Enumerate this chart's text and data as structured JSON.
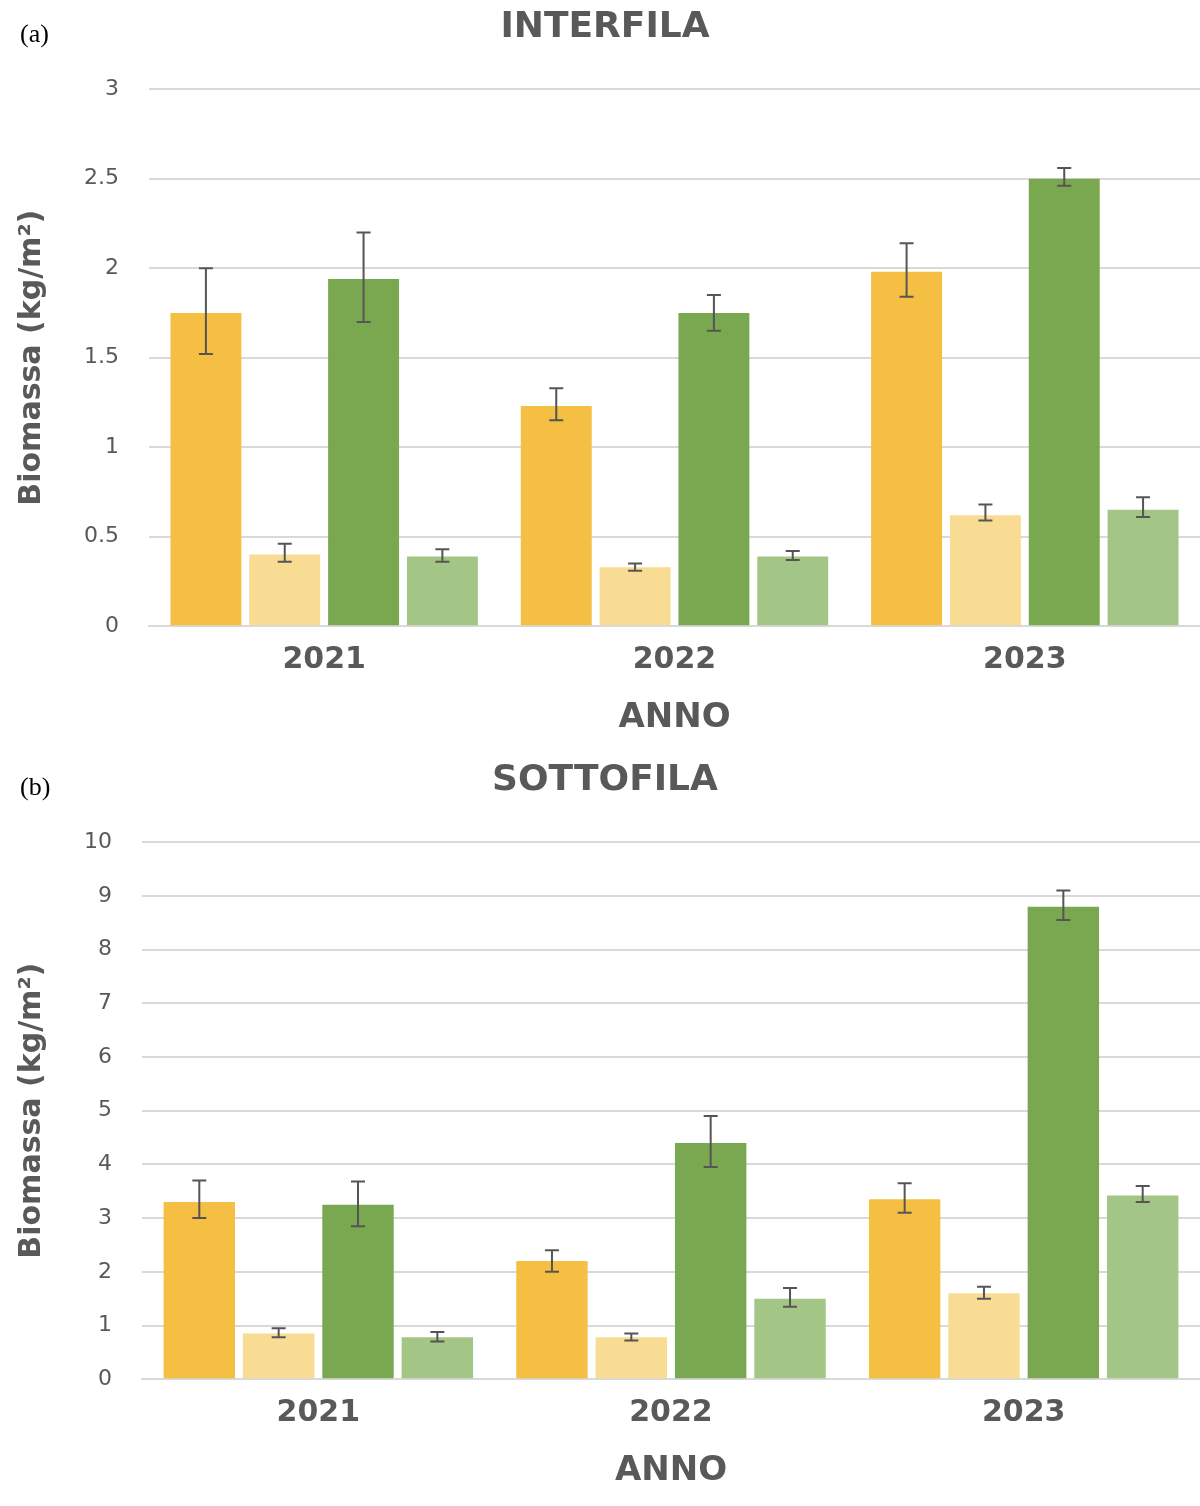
{
  "chart_data": [
    {
      "type": "bar",
      "title": "INTERFILA",
      "xlabel": "ANNO",
      "ylabel": "Biomassa (kg/m²)",
      "annotations": [
        "(a)"
      ],
      "categories": [
        "2021",
        "2022",
        "2023"
      ],
      "series": [
        {
          "color": "#f4bf42",
          "values": [
            1.75,
            1.23,
            1.98
          ],
          "errors": [
            [
              1.52,
              2.0
            ],
            [
              1.15,
              1.33
            ],
            [
              1.84,
              2.14
            ]
          ]
        },
        {
          "color": "#f9dc94",
          "values": [
            0.4,
            0.33,
            0.62
          ],
          "errors": [
            [
              0.36,
              0.46
            ],
            [
              0.31,
              0.35
            ],
            [
              0.59,
              0.68
            ]
          ]
        },
        {
          "color": "#7aa851",
          "values": [
            1.94,
            1.75,
            2.5
          ],
          "errors": [
            [
              1.7,
              2.2
            ],
            [
              1.65,
              1.85
            ],
            [
              2.46,
              2.56
            ]
          ]
        },
        {
          "color": "#a3c585",
          "values": [
            0.39,
            0.39,
            0.65
          ],
          "errors": [
            [
              0.36,
              0.43
            ],
            [
              0.37,
              0.42
            ],
            [
              0.61,
              0.72
            ]
          ]
        }
      ],
      "ylim": [
        0,
        3
      ],
      "yticks": [
        0,
        0.5,
        1,
        1.5,
        2,
        2.5,
        3
      ],
      "grid": "y"
    },
    {
      "type": "bar",
      "title": "SOTTOFILA",
      "xlabel": "ANNO",
      "ylabel": "Biomassa (kg/m²)",
      "annotations": [
        "(b)"
      ],
      "categories": [
        "2021",
        "2022",
        "2023"
      ],
      "series": [
        {
          "color": "#f4bf42",
          "values": [
            3.3,
            2.2,
            3.35
          ],
          "errors": [
            [
              3.0,
              3.7
            ],
            [
              2.0,
              2.4
            ],
            [
              3.1,
              3.65
            ]
          ]
        },
        {
          "color": "#f9dc94",
          "values": [
            0.85,
            0.78,
            1.6
          ],
          "errors": [
            [
              0.78,
              0.95
            ],
            [
              0.72,
              0.85
            ],
            [
              1.5,
              1.72
            ]
          ]
        },
        {
          "color": "#7aa851",
          "values": [
            3.25,
            4.4,
            8.8
          ],
          "errors": [
            [
              2.85,
              3.68
            ],
            [
              3.95,
              4.9
            ],
            [
              8.55,
              9.1
            ]
          ]
        },
        {
          "color": "#a3c585",
          "values": [
            0.78,
            1.5,
            3.42
          ],
          "errors": [
            [
              0.7,
              0.88
            ],
            [
              1.35,
              1.7
            ],
            [
              3.3,
              3.6
            ]
          ]
        }
      ],
      "ylim": [
        0,
        10
      ],
      "yticks": [
        0,
        1,
        2,
        3,
        4,
        5,
        6,
        7,
        8,
        9,
        10
      ],
      "grid": "y"
    }
  ]
}
